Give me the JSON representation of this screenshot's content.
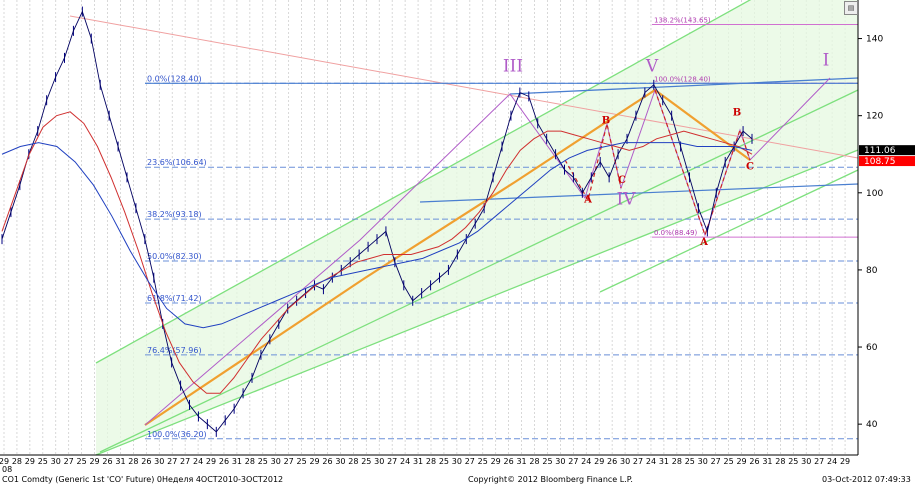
{
  "chart_data": {
    "type": "line",
    "instrument": "CO1 Comdty (Generic 1st 'CO' Future)",
    "period_label": "0Неделя 4OCT2010-3OCT2012",
    "copyright": "Copyright© 2012 Bloomberg Finance L.P.",
    "timestamp": "03-Oct-2012 07:49:33",
    "corner_label": "08",
    "ylim": [
      32,
      150
    ],
    "y_ticks": [
      40,
      60,
      80,
      100,
      120,
      140
    ],
    "last_prices": [
      {
        "value": 111.06,
        "label": "111.06",
        "color": "#000000"
      },
      {
        "value": 108.75,
        "label": "108.75",
        "color": "#ff0000"
      }
    ],
    "x_tick_labels": [
      "29",
      "28",
      "29",
      "25",
      "30",
      "27",
      "25",
      "29",
      "26",
      "31",
      "28",
      "26",
      "30",
      "27",
      "27",
      "24",
      "29",
      "26",
      "31",
      "28",
      "25",
      "30",
      "27",
      "25",
      "29",
      "26",
      "30",
      "28",
      "25",
      "30",
      "27",
      "24",
      "31",
      "28",
      "25",
      "30",
      "27",
      "25",
      "29",
      "26",
      "31",
      "28",
      "25",
      "30",
      "27",
      "24",
      "29",
      "26",
      "30",
      "27",
      "24",
      "31",
      "28",
      "25",
      "30",
      "27",
      "25",
      "29",
      "26",
      "31",
      "28",
      "25",
      "30",
      "27",
      "24",
      "29"
    ],
    "fibonacci_retracements": [
      {
        "label": "0.0%(128.40)",
        "value": 128.4
      },
      {
        "label": "23.6%(106.64)",
        "value": 106.64
      },
      {
        "label": "38.2%(93.18)",
        "value": 93.18
      },
      {
        "label": "50.0%(82.30)",
        "value": 82.3
      },
      {
        "label": "61.8%(71.42)",
        "value": 71.42
      },
      {
        "label": "76.4%(57.96)",
        "value": 57.96
      },
      {
        "label": "100.0%(36.20)",
        "value": 36.2
      }
    ],
    "fibonacci_extension": [
      {
        "label": "138.2%(143.65)",
        "value": 143.65
      },
      {
        "label": "100.0%(128.40)",
        "value": 128.4
      },
      {
        "label": "0.0%(88.49)",
        "value": 88.49
      }
    ],
    "elliott_wave_labels": [
      {
        "text": "III",
        "value": 131.5,
        "color": "#b05cc8"
      },
      {
        "text": "V",
        "value": 131.5,
        "color": "#b05cc8"
      },
      {
        "text": "IV",
        "value": 97,
        "color": "#b05cc8"
      },
      {
        "text": "I",
        "value": 133,
        "color": "#b05cc8"
      },
      {
        "text": "A",
        "value": 97.5,
        "color": "#cc0000"
      },
      {
        "text": "B",
        "value": 118,
        "color": "#cc0000"
      },
      {
        "text": "C",
        "value": 102.5,
        "color": "#cc0000"
      },
      {
        "text": "A",
        "value": 86.5,
        "color": "#cc0000"
      },
      {
        "text": "B",
        "value": 120,
        "color": "#cc0000"
      },
      {
        "text": "C",
        "value": 106,
        "color": "#cc0000"
      }
    ],
    "price_series": {
      "name": "",
      "values": [
        88,
        95,
        102,
        110,
        116,
        124,
        130,
        135,
        142,
        147,
        140,
        128,
        120,
        112,
        104,
        96,
        88,
        78,
        66,
        56,
        50,
        45,
        42,
        40,
        38,
        41,
        44,
        48,
        52,
        58,
        62,
        66,
        70,
        72,
        74,
        76,
        75,
        78,
        80,
        82,
        84,
        86,
        88,
        90,
        82,
        76,
        72,
        74,
        76,
        78,
        80,
        84,
        88,
        92,
        96,
        104,
        112,
        120,
        126,
        125,
        118,
        114,
        110,
        106,
        104,
        100,
        104,
        108,
        104,
        110,
        114,
        120,
        126,
        128,
        124,
        120,
        112,
        104,
        96,
        90,
        100,
        108,
        112,
        116,
        114
      ]
    },
    "ma_red": [
      90,
      100,
      110,
      117,
      120,
      121,
      118,
      112,
      104,
      95,
      85,
      74,
      64,
      56,
      51,
      48,
      48,
      52,
      57,
      62,
      66,
      70,
      73,
      76,
      78,
      80,
      82,
      83,
      84,
      84,
      84,
      85,
      86,
      88,
      91,
      95,
      100,
      106,
      111,
      114,
      116,
      116,
      115,
      114,
      113,
      112,
      111,
      112,
      114,
      115,
      116,
      115,
      114,
      113,
      112,
      110
    ],
    "ma_blue": [
      110,
      112,
      113,
      112,
      108,
      102,
      94,
      85,
      77,
      70,
      66,
      65,
      66,
      68,
      70,
      72,
      74,
      76,
      78,
      79,
      80,
      81,
      82,
      83,
      85,
      87,
      90,
      94,
      98,
      102,
      106,
      109,
      111,
      112,
      113,
      113,
      113,
      113,
      112,
      112,
      112,
      111
    ]
  }
}
